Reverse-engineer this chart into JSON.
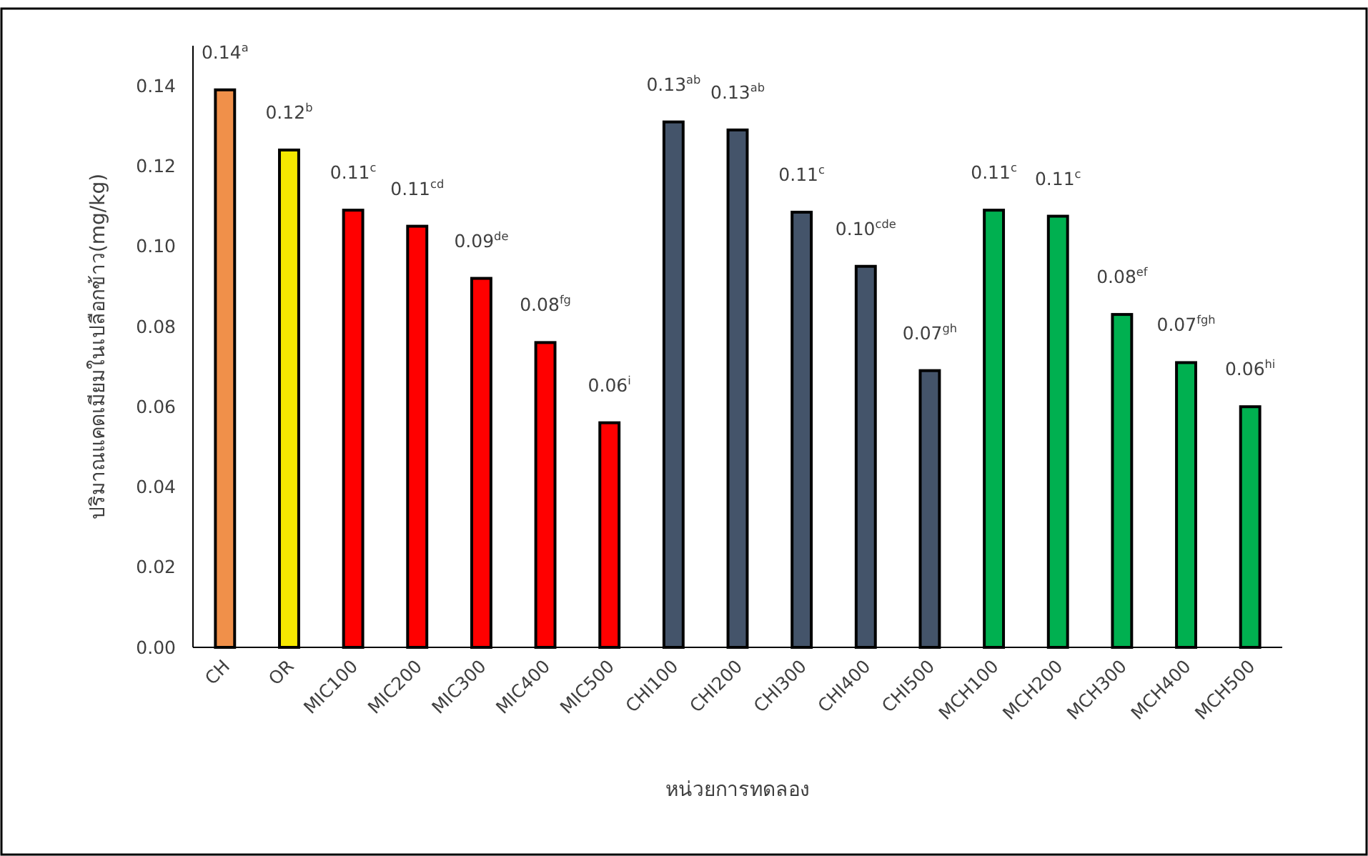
{
  "chart_data": {
    "type": "bar",
    "xlabel": "หน่วยการทดลอง",
    "ylabel": "ปริมาณแคดเมียมในเปลือกข้าว(mg/kg)",
    "categories": [
      "CH",
      "OR",
      "MIC100",
      "MIC200",
      "MIC300",
      "MIC400",
      "MIC500",
      "CHI100",
      "CHI200",
      "CHI300",
      "CHI400",
      "CHI500",
      "MCH100",
      "MCH200",
      "MCH300",
      "MCH400",
      "MCH500"
    ],
    "values": [
      0.139,
      0.124,
      0.109,
      0.105,
      0.092,
      0.076,
      0.056,
      0.131,
      0.129,
      0.1085,
      0.095,
      0.069,
      0.109,
      0.1075,
      0.083,
      0.071,
      0.06
    ],
    "colors": [
      "#f0904a",
      "#f5e800",
      "#ff0000",
      "#ff0000",
      "#ff0000",
      "#ff0000",
      "#ff0000",
      "#44546a",
      "#44546a",
      "#44546a",
      "#44546a",
      "#44546a",
      "#00b050",
      "#00b050",
      "#00b050",
      "#00b050",
      "#00b050"
    ],
    "value_labels": [
      "0.14$^{a}$",
      "0.12$^{b}$",
      "0.11$^{c}$",
      "0.11$^{cd}$",
      "0.09$^{de}$",
      "0.08$^{fg}$",
      "0.06$^{i}$",
      "0.13$^{ab}$",
      "0.13$^{ab}$",
      "0.11$^{c}$",
      "0.10$^{cde}$",
      "0.07$^{gh}$",
      "0.11$^{c}$",
      "0.11$^{c}$",
      "0.08$^{ef}$",
      "0.07$^{fgh}$",
      "0.06$^{hi}$"
    ],
    "ylim": [
      0,
      0.15
    ],
    "yticks": [
      {
        "value": 0,
        "label": "0.00"
      },
      {
        "value": 0.02,
        "label": "0.02"
      },
      {
        "value": 0.04,
        "label": "0.04"
      },
      {
        "value": 0.06,
        "label": "0.06"
      },
      {
        "value": 0.08,
        "label": "0.08"
      },
      {
        "value": 0.1,
        "label": "0.10"
      },
      {
        "value": 0.12,
        "label": "0.12"
      },
      {
        "value": 0.14,
        "label": "0.14"
      }
    ],
    "grid": false
  }
}
